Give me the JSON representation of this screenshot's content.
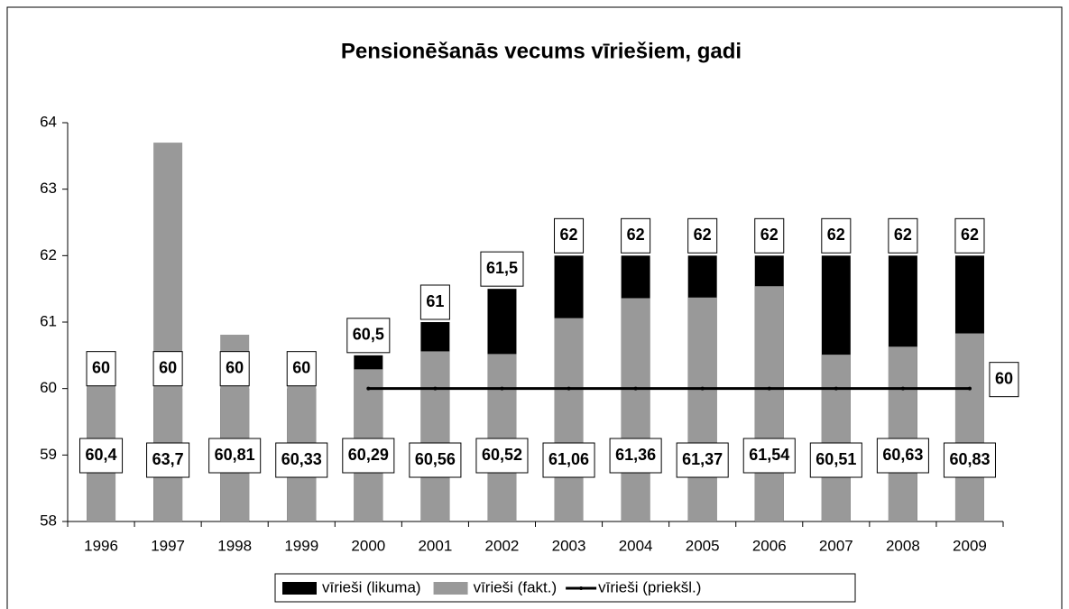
{
  "chart_data": {
    "type": "bar",
    "title": "Pensionēšanās vecums vīriešiem, gadi",
    "categories": [
      "1996",
      "1997",
      "1998",
      "1999",
      "2000",
      "2001",
      "2002",
      "2003",
      "2004",
      "2005",
      "2006",
      "2007",
      "2008",
      "2009"
    ],
    "series": [
      {
        "name": "vīrieši (likuma)",
        "color": "#000000",
        "type": "bar",
        "values": [
          60,
          60,
          60,
          60,
          60.5,
          61,
          61.5,
          62,
          62,
          62,
          62,
          62,
          62,
          62
        ],
        "value_labels": [
          "60",
          "60",
          "60",
          "60",
          "60,5",
          "61",
          "61,5",
          "62",
          "62",
          "62",
          "62",
          "62",
          "62",
          "62"
        ]
      },
      {
        "name": "vīrieši (fakt.)",
        "color": "#999999",
        "type": "bar",
        "values": [
          60.4,
          63.7,
          60.81,
          60.33,
          60.29,
          60.56,
          60.52,
          61.06,
          61.36,
          61.37,
          61.54,
          60.51,
          60.63,
          60.83
        ],
        "value_labels": [
          "60,4",
          "63,7",
          "60,81",
          "60,33",
          "60,29",
          "60,56",
          "60,52",
          "61,06",
          "61,36",
          "61,37",
          "61,54",
          "60,51",
          "60,63",
          "60,83"
        ]
      },
      {
        "name": "vīrieši (priekšl.)",
        "color": "#000000",
        "type": "line",
        "values": [
          null,
          null,
          null,
          null,
          60,
          60,
          60,
          60,
          60,
          60,
          60,
          60,
          60,
          60
        ],
        "value_labels": [
          null,
          null,
          null,
          null,
          null,
          null,
          null,
          null,
          null,
          null,
          null,
          null,
          null,
          "60"
        ]
      }
    ],
    "ylim": [
      58,
      64
    ],
    "yticks": [
      58,
      59,
      60,
      61,
      62,
      63,
      64
    ],
    "grid": false,
    "legend": "bottom"
  }
}
